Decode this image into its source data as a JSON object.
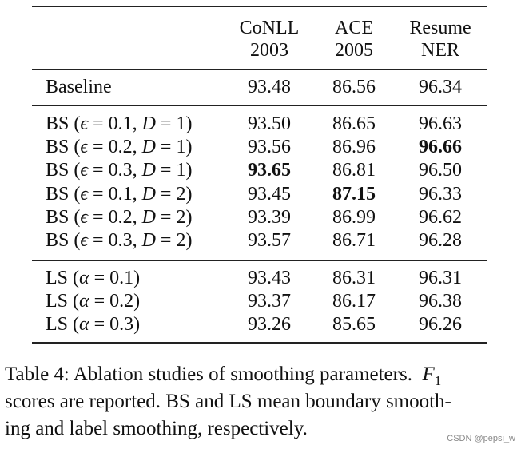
{
  "table": {
    "headers": [
      {
        "line1": "CoNLL",
        "line2": "2003"
      },
      {
        "line1": "ACE",
        "line2": "2005"
      },
      {
        "line1": "Resume",
        "line2": "NER"
      }
    ],
    "baseline": {
      "label": "Baseline",
      "values": [
        "93.48",
        "86.56",
        "96.34"
      ],
      "bold": [
        false,
        false,
        false
      ]
    },
    "bs_rows": [
      {
        "method": "BS",
        "eps": "0.1",
        "D": "1",
        "values": [
          "93.50",
          "86.65",
          "96.63"
        ],
        "bold": [
          false,
          false,
          false
        ]
      },
      {
        "method": "BS",
        "eps": "0.2",
        "D": "1",
        "values": [
          "93.56",
          "86.96",
          "96.66"
        ],
        "bold": [
          false,
          false,
          true
        ]
      },
      {
        "method": "BS",
        "eps": "0.3",
        "D": "1",
        "values": [
          "93.65",
          "86.81",
          "96.50"
        ],
        "bold": [
          true,
          false,
          false
        ]
      },
      {
        "method": "BS",
        "eps": "0.1",
        "D": "2",
        "values": [
          "93.45",
          "87.15",
          "96.33"
        ],
        "bold": [
          false,
          true,
          false
        ]
      },
      {
        "method": "BS",
        "eps": "0.2",
        "D": "2",
        "values": [
          "93.39",
          "86.99",
          "96.62"
        ],
        "bold": [
          false,
          false,
          false
        ]
      },
      {
        "method": "BS",
        "eps": "0.3",
        "D": "2",
        "values": [
          "93.57",
          "86.71",
          "96.28"
        ],
        "bold": [
          false,
          false,
          false
        ]
      }
    ],
    "ls_rows": [
      {
        "method": "LS",
        "alpha": "0.1",
        "values": [
          "93.43",
          "86.31",
          "96.31"
        ],
        "bold": [
          false,
          false,
          false
        ]
      },
      {
        "method": "LS",
        "alpha": "0.2",
        "values": [
          "93.37",
          "86.17",
          "96.38"
        ],
        "bold": [
          false,
          false,
          false
        ]
      },
      {
        "method": "LS",
        "alpha": "0.3",
        "values": [
          "93.26",
          "85.65",
          "96.26"
        ],
        "bold": [
          false,
          false,
          false
        ]
      }
    ],
    "symbols": {
      "eps": "ϵ",
      "D": "D",
      "alpha": "α"
    }
  },
  "caption": {
    "line1_text": "Table 4: Ablation studies of smoothing parameters.",
    "line1_math": "F",
    "line1_sub": "1",
    "line2": "scores are reported. BS and LS mean boundary smooth-",
    "line3": "ing and label smoothing, respectively."
  },
  "watermark": "CSDN @pepsi_w"
}
